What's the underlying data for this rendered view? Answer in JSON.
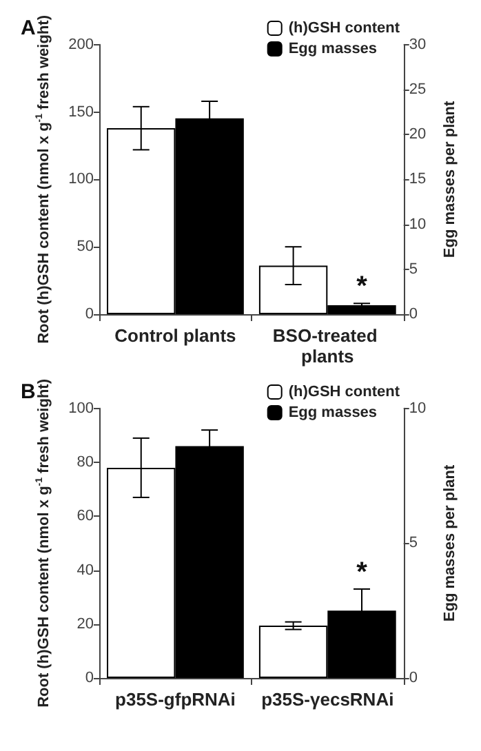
{
  "chart_data": [
    {
      "type": "bar",
      "title": "A",
      "ylabel": "Root (h)GSH content (nmol x g$^{-1}$ fresh weight)",
      "y2label": "Egg masses per plant",
      "categories": [
        "Control plants",
        "BSO-treated plants"
      ],
      "series": [
        {
          "name": "(h)GSH content",
          "color": "#ffffff",
          "values": [
            138,
            36
          ],
          "errors": [
            16,
            14
          ]
        },
        {
          "name": "Egg masses",
          "color": "#000000",
          "axis": "y2",
          "values": [
            21.8,
            1.0
          ],
          "errors": [
            1.9,
            0.2
          ]
        }
      ],
      "ylim": [
        0,
        200
      ],
      "yticks": [
        0,
        50,
        100,
        150,
        200
      ],
      "y2lim": [
        0,
        30
      ],
      "y2ticks": [
        0,
        5,
        10,
        15,
        20,
        25,
        30
      ],
      "legend": "top right",
      "grid": false,
      "annotations": [
        "*"
      ]
    },
    {
      "type": "bar",
      "title": "B",
      "ylabel": "Root (h)GSH content (nmol x g$^{-1}$ fresh weight)",
      "y2label": "Egg masses per plant",
      "categories": [
        "p35S-gfpRNAi",
        "p35S-γecsRNAi"
      ],
      "series": [
        {
          "name": "(h)GSH content",
          "color": "#ffffff",
          "values": [
            78,
            19.4
          ],
          "errors": [
            11,
            1.4
          ]
        },
        {
          "name": "Egg masses",
          "color": "#000000",
          "axis": "y2",
          "values": [
            8.6,
            2.5
          ],
          "errors": [
            0.6,
            0.8
          ]
        }
      ],
      "ylim": [
        0,
        100
      ],
      "yticks": [
        0,
        20,
        40,
        60,
        80,
        100
      ],
      "y2lim": [
        0,
        10
      ],
      "y2ticks": [
        0,
        5,
        10
      ],
      "legend": "top right",
      "grid": false,
      "annotations": [
        "*"
      ]
    }
  ]
}
